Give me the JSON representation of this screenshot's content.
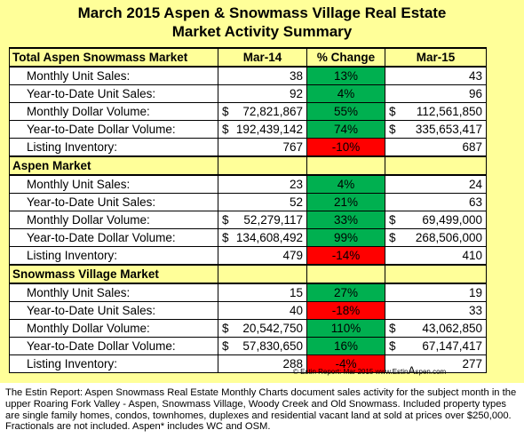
{
  "title": {
    "line1": "March 2015 Aspen & Snowmass Village Real Estate",
    "line2": "Market Activity Summary"
  },
  "header": {
    "period1": "Mar-14",
    "change": "% Change",
    "period2": "Mar-15"
  },
  "sections": [
    {
      "name": "Total Aspen Snowmass Market",
      "rows": [
        {
          "label": "Monthly Unit Sales:",
          "cur1": "",
          "v1": "38",
          "pct": "13%",
          "status": "up",
          "cur2": "",
          "v2": "43"
        },
        {
          "label": "Year-to-Date Unit Sales:",
          "cur1": "",
          "v1": "92",
          "pct": "4%",
          "status": "up",
          "cur2": "",
          "v2": "96"
        },
        {
          "label": "Monthly Dollar Volume:",
          "cur1": "$",
          "v1": "72,821,867",
          "pct": "55%",
          "status": "up",
          "cur2": "$",
          "v2": "112,561,850"
        },
        {
          "label": "Year-to-Date Dollar Volume:",
          "cur1": "$",
          "v1": "192,439,142",
          "pct": "74%",
          "status": "up",
          "cur2": "$",
          "v2": "335,653,417"
        },
        {
          "label": "Listing Inventory:",
          "cur1": "",
          "v1": "767",
          "pct": "-10%",
          "status": "down",
          "cur2": "",
          "v2": "687"
        }
      ]
    },
    {
      "name": "Aspen Market",
      "rows": [
        {
          "label": "Monthly Unit Sales:",
          "cur1": "",
          "v1": "23",
          "pct": "4%",
          "status": "up",
          "cur2": "",
          "v2": "24"
        },
        {
          "label": "Year-to-Date Unit Sales:",
          "cur1": "",
          "v1": "52",
          "pct": "21%",
          "status": "up",
          "cur2": "",
          "v2": "63"
        },
        {
          "label": "Monthly Dollar Volume:",
          "cur1": "$",
          "v1": "52,279,117",
          "pct": "33%",
          "status": "up",
          "cur2": "$",
          "v2": "69,499,000"
        },
        {
          "label": "Year-to-Date Dollar Volume:",
          "cur1": "$",
          "v1": "134,608,492",
          "pct": "99%",
          "status": "up",
          "cur2": "$",
          "v2": "268,506,000"
        },
        {
          "label": "Listing Inventory:",
          "cur1": "",
          "v1": "479",
          "pct": "-14%",
          "status": "down",
          "cur2": "",
          "v2": "410"
        }
      ]
    },
    {
      "name": "Snowmass Village Market",
      "rows": [
        {
          "label": "Monthly Unit Sales:",
          "cur1": "",
          "v1": "15",
          "pct": "27%",
          "status": "up",
          "cur2": "",
          "v2": "19"
        },
        {
          "label": "Year-to-Date Unit Sales:",
          "cur1": "",
          "v1": "40",
          "pct": "-18%",
          "status": "down",
          "cur2": "",
          "v2": "33"
        },
        {
          "label": "Monthly Dollar Volume:",
          "cur1": "$",
          "v1": "20,542,750",
          "pct": "110%",
          "status": "up",
          "cur2": "$",
          "v2": "43,062,850"
        },
        {
          "label": "Year-to-Date Dollar Volume:",
          "cur1": "$",
          "v1": "57,830,650",
          "pct": "16%",
          "status": "up",
          "cur2": "$",
          "v2": "67,147,417"
        },
        {
          "label": "Listing Inventory:",
          "cur1": "",
          "v1": "288",
          "pct": "-4%",
          "status": "down",
          "cur2": "",
          "v2": "277"
        }
      ]
    }
  ],
  "colors": {
    "background": "#ffff99",
    "up": "#00b050",
    "down": "#ff0000"
  },
  "credit": {
    "prefix": "© Estin Report: Mar 2015 www.Estin",
    "logo_letter": "A",
    "suffix": "spen.com"
  },
  "caption": "The Estin Report: Aspen Snowmass Real Estate Monthly Charts document sales activity for the subject month in the upper Roaring Fork Valley - Aspen, Snowmass Village, Woody Creek and Old Snowmass. Included property types are single family homes, condos, townhomes, duplexes and residential vacant land at sold at prices over $250,000. Fractionals are not included. Aspen* includes WC and OSM."
}
